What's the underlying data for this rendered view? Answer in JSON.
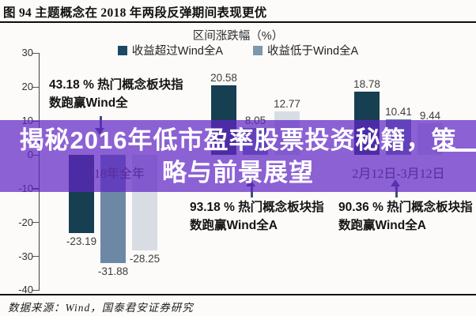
{
  "figure": {
    "title": "图 94  主题概念在 2018 年两段反弹期间表现更优",
    "source": "数据来源：Wind，国泰君安证券研究"
  },
  "legend": {
    "title": "区间涨跌幅（%）",
    "items": [
      {
        "label": "收益超过Wind全A",
        "color": "#1c4866"
      },
      {
        "label": "收益低于Wind全A",
        "color": "#7d97ad"
      }
    ]
  },
  "overlay": {
    "lines": [
      "揭秘2016年低市盈率股票投资秘籍，策",
      "略与前景展望"
    ],
    "color": "rgba(97,38,197,0.72)"
  },
  "annotations": [
    {
      "text": "43.18 % 热门概念板块指数跑赢Wind全",
      "arrow": "down"
    },
    {
      "text": "93.18 % 热门概念板块指数跑赢Wind全A",
      "arrow": "up"
    },
    {
      "text": "90.36 % 热门概念板块指数跑赢Wind全A",
      "arrow": "up"
    }
  ],
  "chart_data": {
    "type": "bar",
    "categories": [
      "2018年全年",
      "",
      "2月12日-3月12日"
    ],
    "series": [
      {
        "name": "收益超过Wind全A",
        "values": [
          -23.19,
          20.58,
          18.78
        ],
        "color": "#163f52"
      },
      {
        "name": "收益低于Wind全A",
        "values": [
          -31.88,
          8.05,
          10.41
        ],
        "color": "#6d88a5"
      },
      {
        "name": "",
        "values": [
          -28.25,
          12.77,
          9.44
        ],
        "color": "#d8dde4"
      }
    ],
    "title": "区间涨跌幅（%）",
    "xlabel": "",
    "ylabel": "",
    "ylim": [
      -40,
      30
    ],
    "yticks": [
      30,
      20,
      10,
      0,
      -10,
      -20,
      -30,
      -40
    ],
    "grid": false,
    "legend_position": "top",
    "value_labels": true
  }
}
